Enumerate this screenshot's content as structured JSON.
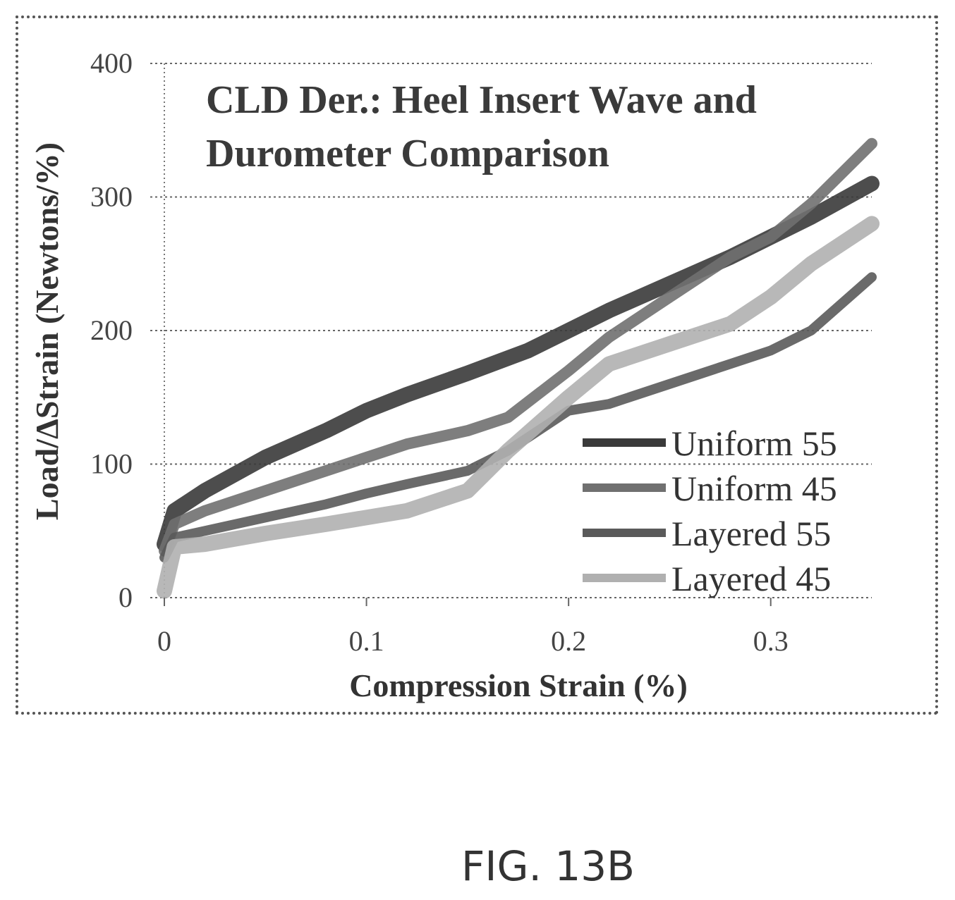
{
  "figure_label": "FIG. 13B",
  "chart_data": {
    "type": "line",
    "title_lines": [
      "CLD Der.: Heel Insert Wave and",
      "Durometer Comparison"
    ],
    "xlabel": "Compression Strain (%)",
    "ylabel": "Load/ΔStrain (Newtons/%)",
    "xlim": [
      0,
      0.35
    ],
    "ylim": [
      0,
      400
    ],
    "x_ticks": [
      0,
      0.1,
      0.2,
      0.3
    ],
    "x_tick_labels": [
      "0",
      "0.1",
      "0.2",
      "0.3"
    ],
    "y_ticks": [
      0,
      100,
      200,
      300,
      400
    ],
    "y_tick_labels": [
      "0",
      "100",
      "200",
      "300",
      "400"
    ],
    "grid": "horizontal-dashed",
    "legend_position": "bottom-right",
    "series": [
      {
        "name": "Uniform 55",
        "color": "#3a3a3a",
        "x": [
          0,
          0.005,
          0.02,
          0.05,
          0.08,
          0.1,
          0.12,
          0.15,
          0.18,
          0.2,
          0.22,
          0.25,
          0.28,
          0.3,
          0.32,
          0.35
        ],
        "y": [
          40,
          65,
          80,
          105,
          125,
          140,
          152,
          168,
          185,
          200,
          215,
          235,
          255,
          270,
          285,
          310
        ]
      },
      {
        "name": "Uniform 45",
        "color": "#707070",
        "x": [
          0,
          0.005,
          0.02,
          0.05,
          0.08,
          0.1,
          0.12,
          0.15,
          0.17,
          0.2,
          0.22,
          0.25,
          0.28,
          0.3,
          0.32,
          0.35
        ],
        "y": [
          35,
          55,
          65,
          80,
          95,
          105,
          115,
          125,
          135,
          170,
          195,
          225,
          255,
          270,
          295,
          340
        ]
      },
      {
        "name": "Layered 55",
        "color": "#5a5a5a",
        "x": [
          0,
          0.005,
          0.02,
          0.05,
          0.08,
          0.1,
          0.12,
          0.15,
          0.17,
          0.2,
          0.22,
          0.25,
          0.28,
          0.3,
          0.32,
          0.35
        ],
        "y": [
          30,
          45,
          50,
          60,
          70,
          78,
          85,
          95,
          110,
          140,
          145,
          160,
          175,
          185,
          200,
          240
        ]
      },
      {
        "name": "Layered 45",
        "color": "#b0b0b0",
        "x": [
          0,
          0.005,
          0.02,
          0.05,
          0.08,
          0.1,
          0.12,
          0.15,
          0.17,
          0.2,
          0.22,
          0.25,
          0.28,
          0.3,
          0.32,
          0.35
        ],
        "y": [
          5,
          38,
          40,
          48,
          55,
          60,
          65,
          80,
          110,
          150,
          175,
          190,
          205,
          225,
          250,
          280
        ]
      }
    ]
  }
}
